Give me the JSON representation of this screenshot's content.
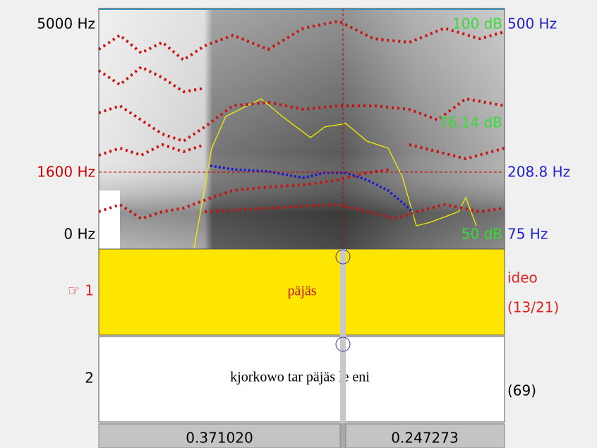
{
  "spectrogram": {
    "left_labels": [
      "5000 Hz",
      "1600 Hz",
      "0 Hz"
    ],
    "intensity_labels": [
      "100 dB",
      "76.14 dB",
      "50 dB"
    ],
    "pitch_labels": [
      "500 Hz",
      "208.8 Hz",
      "75 Hz"
    ]
  },
  "tiers": [
    {
      "label": "☞ 1",
      "text": "päjäs",
      "info": [
        "ideo",
        "(13/21)"
      ]
    },
    {
      "label": "2",
      "text": "kjorkowo tar päjäs le eni",
      "info": [
        "(69)"
      ]
    }
  ],
  "selection": [
    "0.371020",
    "0.247273"
  ]
}
